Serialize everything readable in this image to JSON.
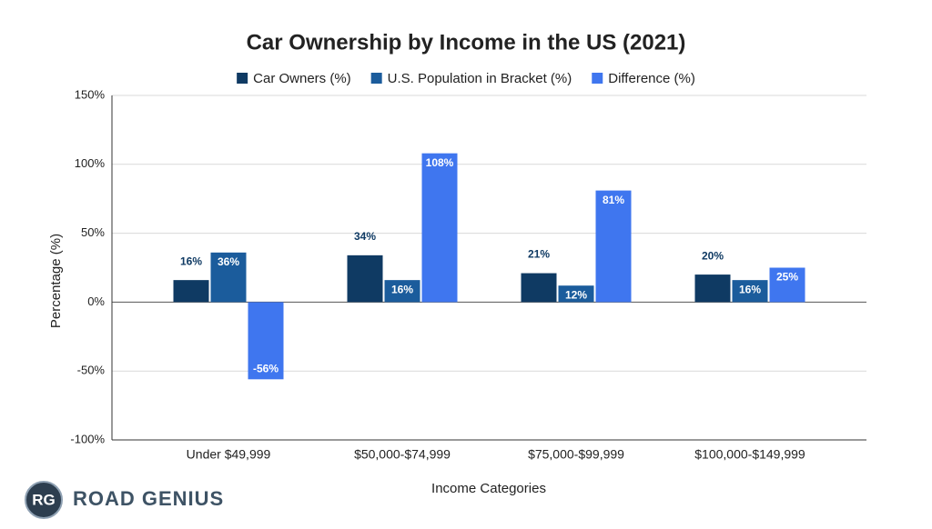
{
  "chart_data": {
    "type": "bar",
    "title": "Car Ownership by Income in the US (2021)",
    "x_label": "Income Categories",
    "y_label": "Percentage (%)",
    "categories": [
      "Under $49,999",
      "$50,000-$74,999",
      "$75,000-$99,999",
      "$100,000-$149,999"
    ],
    "series": [
      {
        "name": "Car Owners (%)",
        "color": "#0f3a63",
        "values": [
          16,
          34,
          21,
          20
        ],
        "value_labels": [
          "16%",
          "34%",
          "21%",
          "20%"
        ]
      },
      {
        "name": "U.S. Population in Bracket (%)",
        "color": "#1b5c9c",
        "values": [
          36,
          16,
          12,
          16
        ],
        "value_labels": [
          "36%",
          "16%",
          "12%",
          "16%"
        ]
      },
      {
        "name": "Difference (%)",
        "color": "#3f76ef",
        "values": [
          -56,
          108,
          81,
          25
        ],
        "value_labels": [
          "-56%",
          "108%",
          "81%",
          "25%"
        ]
      }
    ],
    "ylim": [
      -100,
      150
    ],
    "yticks": [
      {
        "value": -100,
        "label": "-100%"
      },
      {
        "value": -50,
        "label": "-50%"
      },
      {
        "value": 0,
        "label": "0%"
      },
      {
        "value": 50,
        "label": "50%"
      },
      {
        "value": 100,
        "label": "100%"
      },
      {
        "value": 150,
        "label": "150%"
      }
    ],
    "grid": true,
    "legend": "top"
  },
  "logo": {
    "badge": "RG",
    "text": "ROAD GENIUS"
  }
}
